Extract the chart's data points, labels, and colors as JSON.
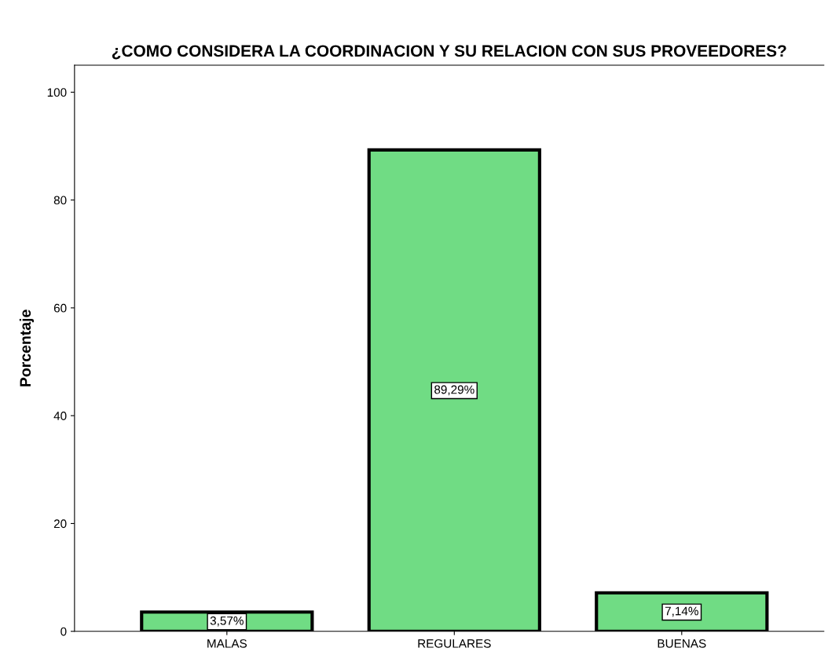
{
  "chart_data": {
    "type": "bar",
    "title": "¿COMO CONSIDERA LA COORDINACION Y SU RELACION CON SUS PROVEEDORES?",
    "ylabel": "Porcentaje",
    "categories": [
      "MALAS",
      "REGULARES",
      "BUENAS"
    ],
    "values": [
      3.57,
      89.29,
      7.14
    ],
    "value_labels": [
      "3,57%",
      "89,29%",
      "7,14%"
    ],
    "color": "#70dc84",
    "ylim": [
      0,
      105
    ],
    "yticks": [
      0,
      20,
      40,
      60,
      80,
      100
    ],
    "grid": false
  }
}
